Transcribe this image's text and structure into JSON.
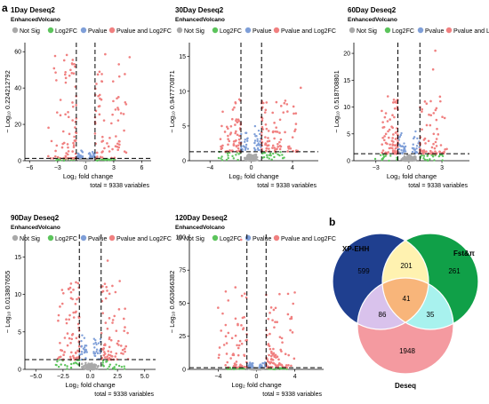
{
  "panels": {
    "a": "a",
    "b": "b"
  },
  "colors": {
    "not_sig": "#a9a9a9",
    "log2fc": "#5cc45c",
    "pvalue": "#7f9fd8",
    "both": "#f08080",
    "venn_xp": "#1f3f8f",
    "venn_fst": "#10a048",
    "venn_deseq": "#f49aa0"
  },
  "chart_data": [
    {
      "type": "scatter",
      "title": "1Day Deseq2",
      "subtitle": "EnhancedVolcano",
      "legend": [
        "Not Sig",
        "Log2FC",
        "Pvalue",
        "Pvalue and Log2FC"
      ],
      "xlabel": "Log₂ fold change",
      "ylabel": "− Log₁₀ 0.224212792",
      "xticks": [
        "−6",
        "−3",
        "0",
        "3",
        "6"
      ],
      "yticks": [
        "0",
        "20",
        "40",
        "60"
      ],
      "xlim": [
        -6.5,
        7
      ],
      "ylim": [
        0,
        65
      ],
      "fc_cutoff": 1,
      "p_cutoff_line": 1.3,
      "caption": "total = 9338 variables",
      "sig_x_range": [
        -4,
        4.5
      ],
      "max_y": 60,
      "outliers": [
        [
          4.7,
          57
        ]
      ]
    },
    {
      "type": "scatter",
      "title": "30Day Deseq2",
      "subtitle": "EnhancedVolcano",
      "legend": [
        "Not Sig",
        "Log2FC",
        "Pvalue",
        "Pvalue and Log2FC"
      ],
      "xlabel": "Log₂ fold change",
      "ylabel": "− Log₁₀ 0.947770871",
      "xticks": [
        "−4",
        "0",
        "4"
      ],
      "yticks": [
        "0",
        "5",
        "10",
        "15"
      ],
      "xlim": [
        -6,
        6.5
      ],
      "ylim": [
        0,
        17
      ],
      "fc_cutoff": 1,
      "p_cutoff_line": 1.3,
      "caption": "total = 9338 variables",
      "sig_x_range": [
        -3,
        4.5
      ],
      "max_y": 9,
      "outliers": [
        [
          4.8,
          10.5
        ],
        [
          4.1,
          7.8
        ]
      ]
    },
    {
      "type": "scatter",
      "title": "60Day Deseq2",
      "subtitle": "EnhancedVolcano",
      "legend": [
        "Not Sig",
        "Log2FC",
        "Pvalue",
        "Pvalue and Log2FC"
      ],
      "xlabel": "Log₂ fold change",
      "ylabel": "− Log₁₀ 0.518708801",
      "xticks": [
        "−3",
        "0",
        "3"
      ],
      "yticks": [
        "0",
        "5",
        "10",
        "15",
        "20"
      ],
      "xlim": [
        -5,
        5.5
      ],
      "ylim": [
        0,
        22
      ],
      "fc_cutoff": 1,
      "p_cutoff_line": 1.3,
      "caption": "total = 9338 variables",
      "sig_x_range": [
        -2.5,
        3.5
      ],
      "max_y": 12,
      "outliers": [
        [
          2.4,
          20.5
        ],
        [
          2.2,
          17
        ]
      ]
    },
    {
      "type": "scatter",
      "title": "90Day Deseq2",
      "subtitle": "EnhancedVolcano",
      "legend": [
        "Not Sig",
        "Log2FC",
        "Pvalue",
        "Pvalue and Log2FC"
      ],
      "xlabel": "Log₂ fold change",
      "ylabel": "− Log₁₀ 0.013807655",
      "xticks": [
        "−5.0",
        "−2.5",
        "0.0",
        "2.5",
        "5.0"
      ],
      "yticks": [
        "0",
        "5",
        "10",
        "15"
      ],
      "xlim": [
        -6,
        6
      ],
      "ylim": [
        0,
        18
      ],
      "fc_cutoff": 1,
      "p_cutoff_line": 1.3,
      "caption": "total = 9338 variables",
      "sig_x_range": [
        -3,
        3.5
      ],
      "max_y": 12,
      "outliers": [
        [
          1.6,
          14.5
        ]
      ]
    },
    {
      "type": "scatter",
      "title": "120Day Deseq2",
      "subtitle": "EnhancedVolcano",
      "legend": [
        "Not Sig",
        "Log2FC",
        "Pvalue",
        "Pvalue and Log2FC"
      ],
      "xlabel": "Log₂ fold change",
      "ylabel": "− Log₁₀ 0.663666382",
      "xticks": [
        "−4",
        "0",
        "4"
      ],
      "yticks": [
        "0",
        "25",
        "50",
        "75",
        "100"
      ],
      "xlim": [
        -7,
        7
      ],
      "ylim": [
        0,
        102
      ],
      "fc_cutoff": 1,
      "p_cutoff_line": 1.3,
      "caption": "total = 9338 variables",
      "sig_x_range": [
        -4,
        4
      ],
      "max_y": 60,
      "outliers": [
        [
          -1.6,
          98
        ],
        [
          -2.2,
          62
        ],
        [
          1.8,
          45
        ]
      ]
    }
  ],
  "venn": {
    "type": "venn",
    "sets": [
      "XP-EHH",
      "Fst&π",
      "Deseq"
    ],
    "regions": {
      "xp_only": "599",
      "fst_only": "261",
      "deseq_only": "1948",
      "xp_fst": "201",
      "xp_deseq": "86",
      "fst_deseq": "35",
      "all": "41"
    }
  }
}
